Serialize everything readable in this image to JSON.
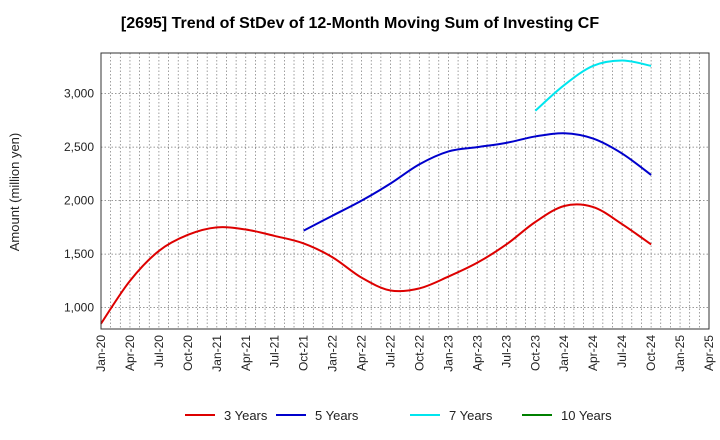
{
  "chart_data": {
    "type": "line",
    "title": "[2695]  Trend of StDev of 12-Month Moving Sum of Investing CF",
    "xlabel": "",
    "ylabel": "Amount (million yen)",
    "ylim": [
      800,
      3380
    ],
    "yticks": [
      1000,
      1500,
      2000,
      2500,
      3000
    ],
    "ytick_labels": [
      "1,000",
      "1,500",
      "2,000",
      "2,500",
      "3,000"
    ],
    "xticks": [
      "Jan-20",
      "Apr-20",
      "Jul-20",
      "Oct-20",
      "Jan-21",
      "Apr-21",
      "Jul-21",
      "Oct-21",
      "Jan-22",
      "Apr-22",
      "Jul-22",
      "Oct-22",
      "Jan-23",
      "Apr-23",
      "Jul-23",
      "Oct-23",
      "Jan-24",
      "Apr-24",
      "Jul-24",
      "Oct-24",
      "Jan-25",
      "Apr-25"
    ],
    "grid": true,
    "legend_position": "bottom",
    "series": [
      {
        "name": "3 Years",
        "color": "#dd0000",
        "x": [
          "Jan-20",
          "Apr-20",
          "Jul-20",
          "Oct-20",
          "Jan-21",
          "Apr-21",
          "Jul-21",
          "Oct-21",
          "Jan-22",
          "Apr-22",
          "Jul-22",
          "Oct-22",
          "Jan-23",
          "Apr-23",
          "Jul-23",
          "Oct-23",
          "Jan-24",
          "Apr-24",
          "Jul-24",
          "Oct-24"
        ],
        "values": [
          850,
          1250,
          1530,
          1680,
          1750,
          1730,
          1670,
          1600,
          1470,
          1280,
          1160,
          1180,
          1290,
          1420,
          1590,
          1800,
          1950,
          1940,
          1780,
          1590
        ]
      },
      {
        "name": "5 Years",
        "color": "#0000cc",
        "x": [
          "Oct-21",
          "Jan-22",
          "Apr-22",
          "Jul-22",
          "Oct-22",
          "Jan-23",
          "Apr-23",
          "Jul-23",
          "Oct-23",
          "Jan-24",
          "Apr-24",
          "Jul-24",
          "Oct-24"
        ],
        "values": [
          1720,
          1860,
          2000,
          2160,
          2340,
          2460,
          2500,
          2540,
          2600,
          2630,
          2580,
          2440,
          2240
        ]
      },
      {
        "name": "7 Years",
        "color": "#00e5ee",
        "x": [
          "Oct-23",
          "Jan-24",
          "Apr-24",
          "Jul-24",
          "Oct-24"
        ],
        "values": [
          2840,
          3080,
          3260,
          3310,
          3260
        ]
      },
      {
        "name": "10 Years",
        "color": "#008000",
        "x": [],
        "values": []
      }
    ]
  }
}
